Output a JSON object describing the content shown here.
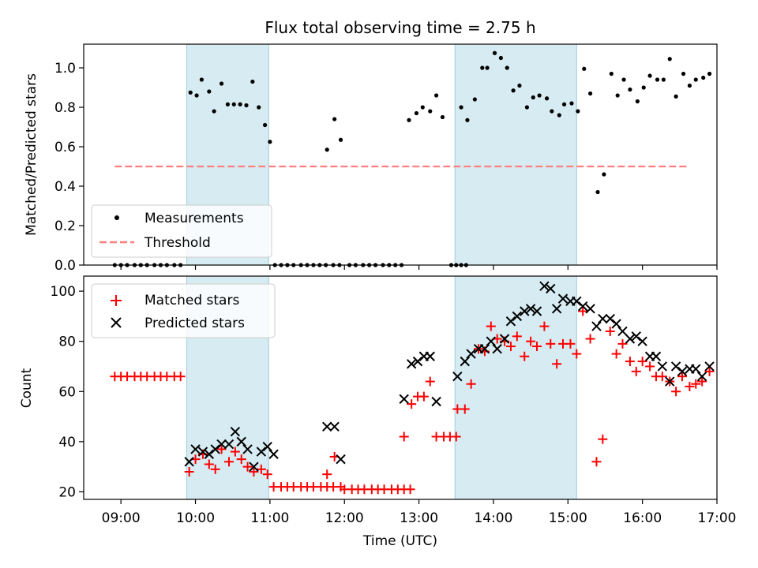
{
  "chart_data": [
    {
      "type": "scatter",
      "title": "Flux total observing time = 2.75 h",
      "ylabel": "Matched/Predicted stars",
      "xlabel": "",
      "ylim": [
        0,
        1.12
      ],
      "xlim": [
        "08:30",
        "17:00"
      ],
      "yticks": [
        "0.0",
        "0.2",
        "0.4",
        "0.6",
        "0.8",
        "1.0"
      ],
      "shaded_intervals": [
        [
          "09:53",
          "10:59"
        ],
        [
          "13:29",
          "15:07"
        ]
      ],
      "threshold": {
        "value": 0.5,
        "x_range": [
          "08:55",
          "16:38"
        ],
        "color": "#ff7f7f"
      },
      "legend": [
        {
          "label": "Measurements",
          "marker": "dot"
        },
        {
          "label": "Threshold",
          "marker": "dashed-line"
        }
      ],
      "series": [
        {
          "name": "Measurements",
          "color": "#000000",
          "points": [
            [
              "08:55",
              0
            ],
            [
              "09:00",
              0
            ],
            [
              "09:05",
              0
            ],
            [
              "09:11",
              0
            ],
            [
              "09:16",
              0
            ],
            [
              "09:21",
              0
            ],
            [
              "09:27",
              0
            ],
            [
              "09:32",
              0
            ],
            [
              "09:37",
              0
            ],
            [
              "09:43",
              0
            ],
            [
              "09:48",
              0
            ],
            [
              "09:56",
              0.875
            ],
            [
              "10:01",
              0.86
            ],
            [
              "10:05",
              0.94
            ],
            [
              "10:11",
              0.88
            ],
            [
              "10:15",
              0.78
            ],
            [
              "10:21",
              0.92
            ],
            [
              "10:26",
              0.815
            ],
            [
              "10:31",
              0.815
            ],
            [
              "10:36",
              0.815
            ],
            [
              "10:41",
              0.81
            ],
            [
              "10:46",
              0.93
            ],
            [
              "10:51",
              0.8
            ],
            [
              "10:56",
              0.71
            ],
            [
              "11:00",
              0.625
            ],
            [
              "11:04",
              0
            ],
            [
              "11:09",
              0
            ],
            [
              "11:14",
              0
            ],
            [
              "11:19",
              0
            ],
            [
              "11:25",
              0
            ],
            [
              "11:30",
              0
            ],
            [
              "11:35",
              0
            ],
            [
              "11:40",
              0
            ],
            [
              "11:45",
              0
            ],
            [
              "11:51",
              0
            ],
            [
              "11:56",
              0
            ],
            [
              "11:46",
              0.585
            ],
            [
              "11:52",
              0.74
            ],
            [
              "11:57",
              0.635
            ],
            [
              "12:04",
              0
            ],
            [
              "12:09",
              0
            ],
            [
              "12:15",
              0
            ],
            [
              "12:20",
              0
            ],
            [
              "12:25",
              0
            ],
            [
              "12:31",
              0
            ],
            [
              "12:36",
              0
            ],
            [
              "12:41",
              0
            ],
            [
              "12:46",
              0
            ],
            [
              "12:52",
              0.735
            ],
            [
              "12:58",
              0.77
            ],
            [
              "13:03",
              0.8
            ],
            [
              "13:09",
              0.78
            ],
            [
              "13:14",
              0.86
            ],
            [
              "13:19",
              0.75
            ],
            [
              "13:26",
              0
            ],
            [
              "13:30",
              0
            ],
            [
              "13:34",
              0
            ],
            [
              "13:38",
              0
            ],
            [
              "13:34",
              0.8
            ],
            [
              "13:39",
              0.735
            ],
            [
              "13:45",
              0.84
            ],
            [
              "13:51",
              1.0
            ],
            [
              "13:55",
              1.0
            ],
            [
              "14:01",
              1.075
            ],
            [
              "14:06",
              1.05
            ],
            [
              "14:11",
              1.0
            ],
            [
              "14:16",
              0.885
            ],
            [
              "14:21",
              0.91
            ],
            [
              "14:27",
              0.8
            ],
            [
              "14:32",
              0.85
            ],
            [
              "14:37",
              0.86
            ],
            [
              "14:43",
              0.845
            ],
            [
              "14:47",
              0.78
            ],
            [
              "14:53",
              0.76
            ],
            [
              "14:57",
              0.815
            ],
            [
              "15:03",
              0.82
            ],
            [
              "15:08",
              0.78
            ],
            [
              "15:13",
              0.995
            ],
            [
              "15:18",
              0.87
            ],
            [
              "15:24",
              0.37
            ],
            [
              "15:29",
              0.46
            ],
            [
              "15:35",
              0.97
            ],
            [
              "15:40",
              0.86
            ],
            [
              "15:45",
              0.94
            ],
            [
              "15:50",
              0.89
            ],
            [
              "15:56",
              0.83
            ],
            [
              "16:01",
              0.9
            ],
            [
              "16:06",
              0.96
            ],
            [
              "16:12",
              0.94
            ],
            [
              "16:17",
              0.94
            ],
            [
              "16:22",
              1.045
            ],
            [
              "16:27",
              0.855
            ],
            [
              "16:33",
              0.97
            ],
            [
              "16:38",
              0.91
            ],
            [
              "16:43",
              0.94
            ],
            [
              "16:49",
              0.95
            ],
            [
              "16:54",
              0.97
            ]
          ]
        }
      ]
    },
    {
      "type": "scatter",
      "title": "",
      "ylabel": "Count",
      "xlabel": "Time (UTC)",
      "ylim": [
        17,
        106
      ],
      "xlim": [
        "08:30",
        "17:00"
      ],
      "yticks": [
        "20",
        "40",
        "60",
        "80",
        "100"
      ],
      "xticks": [
        "09:00",
        "10:00",
        "11:00",
        "12:00",
        "13:00",
        "14:00",
        "15:00",
        "16:00",
        "17:00"
      ],
      "shaded_intervals": [
        [
          "09:53",
          "10:59"
        ],
        [
          "13:29",
          "15:07"
        ]
      ],
      "legend": [
        {
          "label": "Matched stars",
          "marker": "plus"
        },
        {
          "label": "Predicted stars",
          "marker": "x"
        }
      ],
      "series": [
        {
          "name": "Matched stars",
          "marker": "plus",
          "color": "#ff0000",
          "points": [
            [
              "08:55",
              66
            ],
            [
              "09:00",
              66
            ],
            [
              "09:05",
              66
            ],
            [
              "09:11",
              66
            ],
            [
              "09:16",
              66
            ],
            [
              "09:21",
              66
            ],
            [
              "09:27",
              66
            ],
            [
              "09:32",
              66
            ],
            [
              "09:37",
              66
            ],
            [
              "09:43",
              66
            ],
            [
              "09:48",
              66
            ],
            [
              "09:55",
              28
            ],
            [
              "10:00",
              33
            ],
            [
              "10:06",
              35
            ],
            [
              "10:11",
              31
            ],
            [
              "10:16",
              29
            ],
            [
              "10:21",
              37
            ],
            [
              "10:27",
              32
            ],
            [
              "10:32",
              36
            ],
            [
              "10:37",
              33
            ],
            [
              "10:42",
              30
            ],
            [
              "10:47",
              28
            ],
            [
              "10:53",
              29
            ],
            [
              "10:58",
              27
            ],
            [
              "11:03",
              22
            ],
            [
              "11:09",
              22
            ],
            [
              "11:14",
              22
            ],
            [
              "11:19",
              22
            ],
            [
              "11:25",
              22
            ],
            [
              "11:30",
              22
            ],
            [
              "11:35",
              22
            ],
            [
              "11:41",
              22
            ],
            [
              "11:46",
              22
            ],
            [
              "11:51",
              22
            ],
            [
              "11:57",
              22
            ],
            [
              "11:46",
              27
            ],
            [
              "11:52",
              34
            ],
            [
              "12:00",
              21
            ],
            [
              "12:06",
              21
            ],
            [
              "12:11",
              21
            ],
            [
              "12:16",
              21
            ],
            [
              "12:22",
              21
            ],
            [
              "12:27",
              21
            ],
            [
              "12:32",
              21
            ],
            [
              "12:38",
              21
            ],
            [
              "12:43",
              21
            ],
            [
              "12:48",
              21
            ],
            [
              "12:53",
              21
            ],
            [
              "12:48",
              42
            ],
            [
              "12:54",
              55
            ],
            [
              "12:59",
              58
            ],
            [
              "13:04",
              58
            ],
            [
              "13:09",
              64
            ],
            [
              "13:14",
              42
            ],
            [
              "13:20",
              42
            ],
            [
              "13:25",
              42
            ],
            [
              "13:30",
              42
            ],
            [
              "13:31",
              53
            ],
            [
              "13:37",
              53
            ],
            [
              "13:42",
              63
            ],
            [
              "13:48",
              77
            ],
            [
              "13:53",
              76
            ],
            [
              "13:58",
              86
            ],
            [
              "14:03",
              81
            ],
            [
              "14:09",
              80
            ],
            [
              "14:14",
              78
            ],
            [
              "14:19",
              82
            ],
            [
              "14:25",
              74
            ],
            [
              "14:30",
              80
            ],
            [
              "14:35",
              78
            ],
            [
              "14:41",
              86
            ],
            [
              "14:46",
              79
            ],
            [
              "14:51",
              71
            ],
            [
              "14:56",
              79
            ],
            [
              "15:02",
              79
            ],
            [
              "15:07",
              75
            ],
            [
              "15:12",
              92
            ],
            [
              "15:18",
              81
            ],
            [
              "15:23",
              32
            ],
            [
              "15:28",
              41
            ],
            [
              "15:34",
              84
            ],
            [
              "15:39",
              75
            ],
            [
              "15:44",
              79
            ],
            [
              "15:50",
              72
            ],
            [
              "15:55",
              68
            ],
            [
              "16:00",
              72
            ],
            [
              "16:06",
              70
            ],
            [
              "16:11",
              66
            ],
            [
              "16:16",
              66
            ],
            [
              "16:22",
              64
            ],
            [
              "16:27",
              60
            ],
            [
              "16:32",
              66
            ],
            [
              "16:38",
              62
            ],
            [
              "16:43",
              63
            ],
            [
              "16:48",
              64
            ],
            [
              "16:54",
              68
            ]
          ]
        },
        {
          "name": "Predicted stars",
          "marker": "x",
          "color": "#000000",
          "points": [
            [
              "09:55",
              32
            ],
            [
              "10:00",
              37
            ],
            [
              "10:06",
              36
            ],
            [
              "10:11",
              35
            ],
            [
              "10:16",
              37
            ],
            [
              "10:21",
              39
            ],
            [
              "10:27",
              39
            ],
            [
              "10:32",
              44
            ],
            [
              "10:37",
              40
            ],
            [
              "10:42",
              37
            ],
            [
              "10:47",
              30
            ],
            [
              "10:53",
              36
            ],
            [
              "10:58",
              38
            ],
            [
              "11:03",
              35
            ],
            [
              "11:46",
              46
            ],
            [
              "11:52",
              46
            ],
            [
              "11:57",
              33
            ],
            [
              "12:48",
              57
            ],
            [
              "12:54",
              71
            ],
            [
              "12:59",
              72
            ],
            [
              "13:04",
              74
            ],
            [
              "13:09",
              74
            ],
            [
              "13:14",
              56
            ],
            [
              "13:31",
              66
            ],
            [
              "13:37",
              72
            ],
            [
              "13:42",
              75
            ],
            [
              "13:48",
              77
            ],
            [
              "13:53",
              77
            ],
            [
              "13:58",
              80
            ],
            [
              "14:03",
              77
            ],
            [
              "14:09",
              81
            ],
            [
              "14:14",
              88
            ],
            [
              "14:19",
              90
            ],
            [
              "14:25",
              92
            ],
            [
              "14:30",
              93
            ],
            [
              "14:35",
              92
            ],
            [
              "14:41",
              102
            ],
            [
              "14:46",
              101
            ],
            [
              "14:51",
              93
            ],
            [
              "14:56",
              97
            ],
            [
              "15:02",
              96
            ],
            [
              "15:07",
              96
            ],
            [
              "15:12",
              94
            ],
            [
              "15:18",
              93
            ],
            [
              "15:23",
              86
            ],
            [
              "15:28",
              89
            ],
            [
              "15:34",
              89
            ],
            [
              "15:39",
              87
            ],
            [
              "15:44",
              84
            ],
            [
              "15:50",
              81
            ],
            [
              "15:55",
              82
            ],
            [
              "16:00",
              80
            ],
            [
              "16:06",
              74
            ],
            [
              "16:11",
              74
            ],
            [
              "16:16",
              70
            ],
            [
              "16:22",
              64
            ],
            [
              "16:27",
              70
            ],
            [
              "16:32",
              68
            ],
            [
              "16:38",
              69
            ],
            [
              "16:43",
              69
            ],
            [
              "16:48",
              66
            ],
            [
              "16:54",
              70
            ]
          ]
        }
      ]
    }
  ]
}
